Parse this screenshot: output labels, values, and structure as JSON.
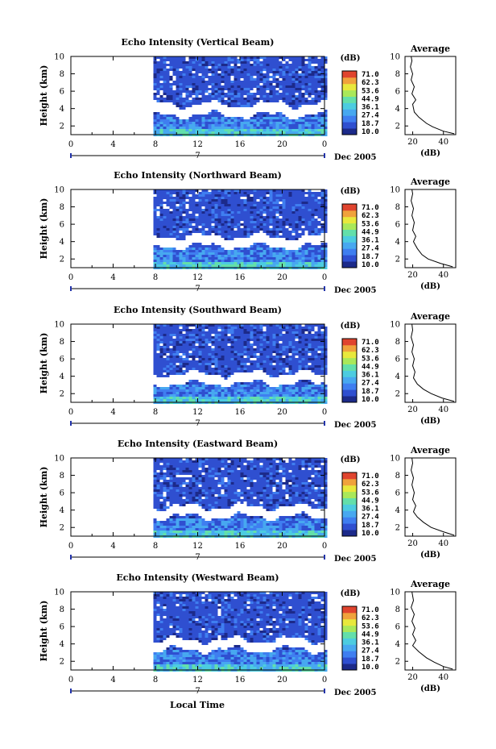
{
  "colors": {
    "scale": [
      "#1c2a8a",
      "#2f4fd0",
      "#3f7ef0",
      "#47a8f0",
      "#4ccce0",
      "#63dfaa",
      "#a9e85a",
      "#e8e83c",
      "#f0a23c",
      "#e0442e"
    ],
    "line": "#000000",
    "axis_marker": "#2233aa"
  },
  "figure": {
    "xlabel": "Local Time",
    "colorbar_unit": "(dB)",
    "colorbar_ticks": [
      "71.0",
      "62.3",
      "53.6",
      "44.9",
      "36.1",
      "27.4",
      "18.7",
      "10.0"
    ],
    "date_label": "Dec 2005",
    "day_label": "7",
    "avg_title": "Average",
    "avg_xlabel": "(dB)"
  },
  "chart_data": [
    {
      "type": "heatmap",
      "title": "Echo Intensity (Vertical Beam)",
      "ylabel": "Height (km)",
      "xlim": [
        0,
        24
      ],
      "ylim": [
        1,
        10
      ],
      "xticks": [
        "0",
        "4",
        "8",
        "12",
        "16",
        "20",
        "0"
      ],
      "yticks": [
        "2",
        "4",
        "6",
        "8",
        "10"
      ],
      "data_start_hour": 7.8,
      "gap_height_km": [
        3.3,
        4.5
      ],
      "average_profile": {
        "xlim": [
          15,
          48
        ],
        "xticks": [
          "20",
          "40"
        ],
        "points": [
          [
            47,
            1.1
          ],
          [
            40,
            1.4
          ],
          [
            33,
            1.9
          ],
          [
            29,
            2.3
          ],
          [
            24,
            3.0
          ],
          [
            21,
            3.6
          ],
          [
            20,
            4.5
          ],
          [
            22,
            5.0
          ],
          [
            19.5,
            5.7
          ],
          [
            21,
            6.5
          ],
          [
            19,
            7.3
          ],
          [
            20,
            8.0
          ],
          [
            18.5,
            8.8
          ],
          [
            19.5,
            9.5
          ],
          [
            19,
            10.0
          ]
        ]
      }
    },
    {
      "type": "heatmap",
      "title": "Echo Intensity (Northward Beam)",
      "ylabel": "Height (km)",
      "xlim": [
        0,
        24
      ],
      "ylim": [
        1,
        10
      ],
      "xticks": [
        "0",
        "4",
        "8",
        "12",
        "16",
        "20",
        "0"
      ],
      "yticks": [
        "2",
        "4",
        "6",
        "8",
        "10"
      ],
      "data_start_hour": 7.8,
      "gap_height_km": [
        3.5,
        4.6
      ],
      "average_profile": {
        "xlim": [
          15,
          48
        ],
        "xticks": [
          "20",
          "40"
        ],
        "points": [
          [
            46,
            1.1
          ],
          [
            38,
            1.5
          ],
          [
            30,
            2.0
          ],
          [
            26,
            2.5
          ],
          [
            23,
            3.2
          ],
          [
            20.5,
            4.0
          ],
          [
            22,
            4.6
          ],
          [
            20,
            5.3
          ],
          [
            21,
            6.2
          ],
          [
            19.5,
            7.0
          ],
          [
            20.5,
            7.8
          ],
          [
            19,
            8.7
          ],
          [
            20,
            9.5
          ],
          [
            19.5,
            10.0
          ]
        ]
      }
    },
    {
      "type": "heatmap",
      "title": "Echo Intensity (Southward Beam)",
      "ylabel": "Height (km)",
      "xlim": [
        0,
        24
      ],
      "ylim": [
        1,
        10
      ],
      "xticks": [
        "0",
        "4",
        "8",
        "12",
        "16",
        "20",
        "0"
      ],
      "yticks": [
        "2",
        "4",
        "6",
        "8",
        "10"
      ],
      "data_start_hour": 7.8,
      "gap_height_km": [
        3.2,
        4.3
      ],
      "average_profile": {
        "xlim": [
          15,
          48
        ],
        "xticks": [
          "20",
          "40"
        ],
        "points": [
          [
            47,
            1.1
          ],
          [
            39,
            1.5
          ],
          [
            32,
            2.0
          ],
          [
            27,
            2.5
          ],
          [
            23,
            3.1
          ],
          [
            20.5,
            3.8
          ],
          [
            21.5,
            4.5
          ],
          [
            20,
            5.2
          ],
          [
            21,
            6.0
          ],
          [
            19.5,
            6.8
          ],
          [
            20.5,
            7.6
          ],
          [
            19,
            8.5
          ],
          [
            20,
            9.3
          ],
          [
            19.5,
            10.0
          ]
        ]
      }
    },
    {
      "type": "heatmap",
      "title": "Echo Intensity (Eastward Beam)",
      "ylabel": "Height (km)",
      "xlim": [
        0,
        24
      ],
      "ylim": [
        1,
        10
      ],
      "xticks": [
        "0",
        "4",
        "8",
        "12",
        "16",
        "20",
        "0"
      ],
      "yticks": [
        "2",
        "4",
        "6",
        "8",
        "10"
      ],
      "data_start_hour": 7.8,
      "gap_height_km": [
        3.3,
        4.4
      ],
      "average_profile": {
        "xlim": [
          15,
          48
        ],
        "xticks": [
          "20",
          "40"
        ],
        "points": [
          [
            47,
            1.1
          ],
          [
            40,
            1.5
          ],
          [
            32,
            2.0
          ],
          [
            27,
            2.6
          ],
          [
            23,
            3.2
          ],
          [
            20.5,
            3.8
          ],
          [
            22,
            4.5
          ],
          [
            20,
            5.2
          ],
          [
            21,
            6.0
          ],
          [
            19.5,
            6.9
          ],
          [
            20.5,
            7.7
          ],
          [
            19,
            8.6
          ],
          [
            20,
            9.4
          ],
          [
            19.5,
            10.0
          ]
        ]
      }
    },
    {
      "type": "heatmap",
      "title": "Echo Intensity (Westward Beam)",
      "ylabel": "Height (km)",
      "xlim": [
        0,
        24
      ],
      "ylim": [
        1,
        10
      ],
      "xticks": [
        "0",
        "4",
        "8",
        "12",
        "16",
        "20",
        "0"
      ],
      "yticks": [
        "2",
        "4",
        "6",
        "8",
        "10"
      ],
      "data_start_hour": 7.8,
      "gap_height_km": [
        3.4,
        4.5
      ],
      "average_profile": {
        "xlim": [
          15,
          48
        ],
        "xticks": [
          "20",
          "40"
        ],
        "points": [
          [
            46,
            1.1
          ],
          [
            40,
            1.4
          ],
          [
            34,
            1.9
          ],
          [
            29,
            2.4
          ],
          [
            24,
            3.1
          ],
          [
            20,
            3.8
          ],
          [
            22,
            4.4
          ],
          [
            20,
            5.1
          ],
          [
            21.5,
            5.8
          ],
          [
            19.5,
            6.6
          ],
          [
            21,
            7.4
          ],
          [
            19,
            8.2
          ],
          [
            20.5,
            9.0
          ],
          [
            19.5,
            10.0
          ]
        ]
      }
    }
  ]
}
